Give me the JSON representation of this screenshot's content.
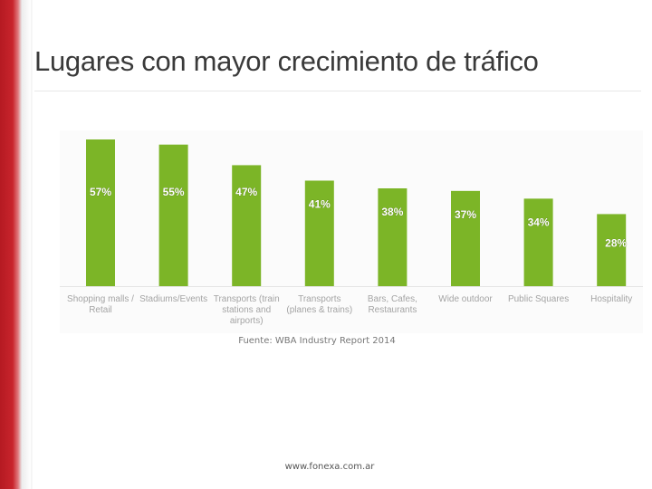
{
  "slide": {
    "title": "Lugares con mayor crecimiento de tráfico",
    "source": "Fuente: WBA Industry Report 2014",
    "footer": "www.fonexa.com.ar"
  },
  "colors": {
    "bar": "#7cb527",
    "label": "#a4a4a4",
    "accent": "#c8242c"
  },
  "chart_data": {
    "type": "bar",
    "categories": [
      [
        "Shopping malls /",
        "Retail"
      ],
      [
        "Stadiums/Events"
      ],
      [
        "Transports (train",
        "stations and",
        "airports)"
      ],
      [
        "Transports",
        "(planes & trains)"
      ],
      [
        "Bars, Cafes,",
        "Restaurants"
      ],
      [
        "Wide outdoor"
      ],
      [
        "Public Squares"
      ],
      [
        "Hospitality"
      ]
    ],
    "values": [
      57,
      55,
      47,
      41,
      38,
      37,
      34,
      28
    ],
    "data_labels": [
      "57%",
      "55%",
      "47%",
      "41%",
      "38%",
      "37%",
      "34%",
      "28%"
    ],
    "title": "",
    "xlabel": "",
    "ylabel": "",
    "ylim": [
      0,
      57
    ],
    "grid": false,
    "legend": "none"
  }
}
